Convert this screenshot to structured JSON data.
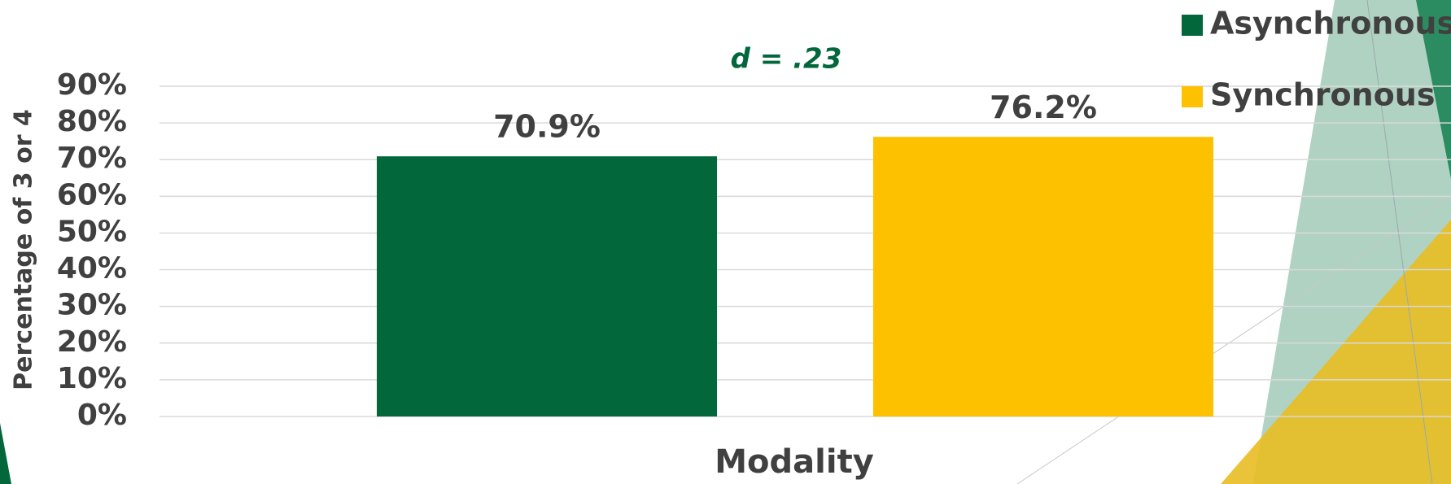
{
  "chart_data": {
    "type": "bar",
    "annotation": "d = .23",
    "x_label": "Modality",
    "y_label": "Percentage of 3 or 4",
    "categories": [
      null
    ],
    "series": [
      {
        "name": "Asynchronous",
        "color": "#03673c",
        "values": [
          70.9
        ],
        "value_labels": [
          "70.9%"
        ]
      },
      {
        "name": "Synchronous",
        "color": "#fdc100",
        "values": [
          76.2
        ],
        "value_labels": [
          "76.2%"
        ]
      }
    ],
    "ylim": [
      0,
      90
    ],
    "yticks": [
      {
        "value": 0,
        "label": "0%"
      },
      {
        "value": 10,
        "label": "10%"
      },
      {
        "value": 20,
        "label": "20%"
      },
      {
        "value": 30,
        "label": "30%"
      },
      {
        "value": 40,
        "label": "40%"
      },
      {
        "value": 50,
        "label": "50%"
      },
      {
        "value": 60,
        "label": "60%"
      },
      {
        "value": 70,
        "label": "70%"
      },
      {
        "value": 80,
        "label": "80%"
      },
      {
        "value": 90,
        "label": "90%"
      }
    ],
    "grid": true,
    "legend": "top-right"
  }
}
